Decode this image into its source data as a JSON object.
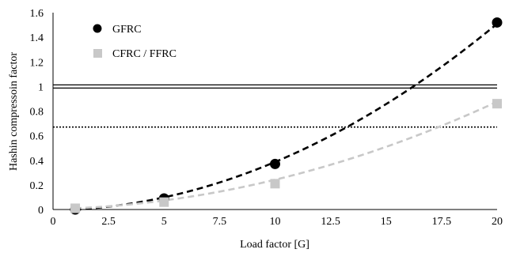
{
  "chart_data": {
    "type": "scatter",
    "xlabel": "Load factor [G]",
    "ylabel": "Hashin compressoin factor",
    "xlim": [
      0,
      20
    ],
    "ylim": [
      0,
      1.6
    ],
    "x_ticks": [
      0,
      2.5,
      5,
      7.5,
      10,
      12.5,
      15,
      17.5,
      20
    ],
    "x_tick_labels": [
      "0",
      "2.5",
      "5",
      "7.5",
      "10",
      "12.5",
      "15",
      "17.5",
      "20"
    ],
    "y_ticks": [
      0,
      0.2,
      0.4,
      0.6,
      0.8,
      1,
      1.2,
      1.4,
      1.6
    ],
    "y_tick_labels": [
      "0",
      "0.2",
      "0.4",
      "0.6",
      "0.8",
      "1",
      "1.2",
      "1.4",
      "1.6"
    ],
    "grid": false,
    "legend_position": "top-left",
    "series": [
      {
        "name": "GFRC",
        "marker": "circle",
        "color": "#000000",
        "x": [
          1,
          5,
          10,
          20
        ],
        "y": [
          0.0,
          0.09,
          0.37,
          1.52
        ],
        "trend": {
          "style": "dashed",
          "color": "#000000",
          "coefficients": [
            0.00365,
            0.0028,
            -0.0065
          ]
        }
      },
      {
        "name": "CFRC / FFRC",
        "marker": "square",
        "color": "#c8c8c8",
        "x": [
          1,
          5,
          10,
          20
        ],
        "y": [
          0.01,
          0.06,
          0.21,
          0.86
        ],
        "trend": {
          "style": "dashed",
          "color": "#c8c8c8",
          "coefficients": [
            0.00198,
            0.004,
            0.004
          ]
        }
      }
    ],
    "reference_lines": [
      {
        "y": 1.0,
        "style": "double",
        "color": "#000000"
      },
      {
        "y": 0.67,
        "style": "dotted",
        "color": "#000000"
      }
    ]
  }
}
